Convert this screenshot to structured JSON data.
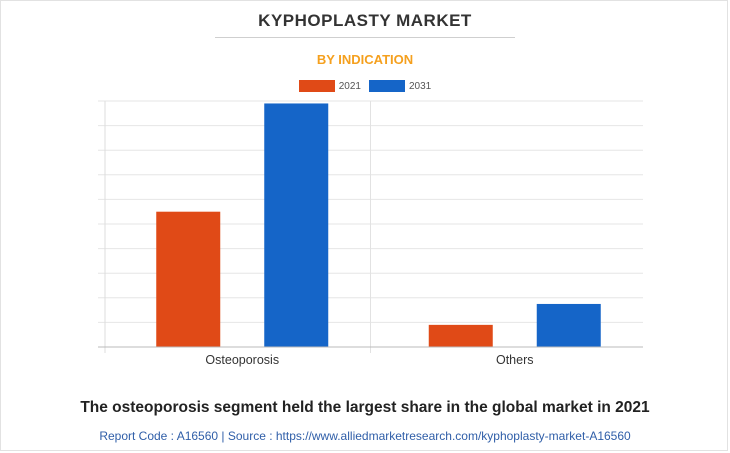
{
  "chart_data": {
    "type": "bar",
    "title": "KYPHOPLASTY MARKET",
    "subtitle": "BY INDICATION",
    "categories": [
      "Osteoporosis",
      "Others"
    ],
    "series": [
      {
        "name": "2021",
        "color": "#e04a17",
        "values": [
          0.55,
          0.09
        ]
      },
      {
        "name": "2031",
        "color": "#1565c8",
        "values": [
          0.99,
          0.175
        ]
      }
    ],
    "ylim": [
      0,
      1.0
    ],
    "y_gridlines": 10,
    "y_tick_labels_visible": false,
    "grid": true,
    "legend_position": "top-center"
  },
  "caption": "The osteoporosis segment held the largest share in the global market in 2021",
  "source": "Report Code : A16560  |  Source : https://www.alliedmarketresearch.com/kyphoplasty-market-A16560"
}
